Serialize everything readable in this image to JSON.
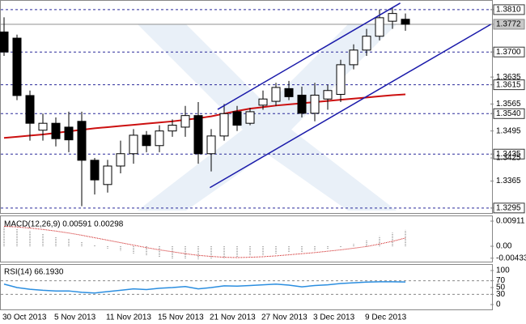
{
  "chart_data": [
    {
      "type": "candlestick",
      "categories": [
        "30 Oct 2013",
        null,
        null,
        null,
        "5 Nov 2013",
        null,
        null,
        null,
        "11 Nov 2013",
        null,
        null,
        null,
        "15 Nov 2013",
        null,
        null,
        null,
        "21 Nov 2013",
        null,
        null,
        null,
        "27 Nov 2013",
        null,
        null,
        null,
        "3 Dec 2013",
        null,
        null,
        null,
        "9 Dec 2013",
        null,
        null,
        null
      ],
      "open": [
        1.3752,
        1.3736,
        1.3587,
        1.3497,
        1.3515,
        1.3505,
        1.352,
        1.3419,
        1.3356,
        1.3404,
        1.3436,
        1.3484,
        1.3457,
        1.3495,
        1.3505,
        1.3535,
        1.3436,
        1.3482,
        1.3545,
        1.3515,
        1.3562,
        1.3572,
        1.3605,
        1.3588,
        1.3541,
        1.3578,
        1.359,
        1.3667,
        1.3705,
        1.3741,
        1.378,
        1.3785
      ],
      "high": [
        1.379,
        1.3745,
        1.36,
        1.354,
        1.353,
        1.3545,
        1.3545,
        1.3425,
        1.342,
        1.347,
        1.35,
        1.3495,
        1.351,
        1.3525,
        1.356,
        1.357,
        1.35,
        1.3565,
        1.356,
        1.3555,
        1.36,
        1.362,
        1.3625,
        1.361,
        1.362,
        1.3615,
        1.368,
        1.372,
        1.376,
        1.381,
        1.3815,
        1.38
      ],
      "low": [
        1.369,
        1.3575,
        1.347,
        1.347,
        1.3455,
        1.344,
        1.33,
        1.333,
        1.3335,
        1.3385,
        1.341,
        1.344,
        1.344,
        1.348,
        1.348,
        1.341,
        1.339,
        1.347,
        1.3495,
        1.351,
        1.355,
        1.356,
        1.3575,
        1.353,
        1.352,
        1.355,
        1.357,
        1.3655,
        1.369,
        1.373,
        1.376,
        1.3755
      ],
      "close": [
        1.37,
        1.3587,
        1.3515,
        1.3515,
        1.3475,
        1.3472,
        1.3419,
        1.3368,
        1.3404,
        1.3436,
        1.3484,
        1.3457,
        1.3495,
        1.351,
        1.3535,
        1.3436,
        1.3482,
        1.354,
        1.351,
        1.3545,
        1.3578,
        1.3608,
        1.3584,
        1.3541,
        1.3588,
        1.36,
        1.3667,
        1.3705,
        1.3741,
        1.3789,
        1.38,
        1.3772
      ],
      "up_color": "#ffffff",
      "down_color": "#000000",
      "moving_average": [
        1.3477,
        1.348,
        1.3483,
        1.3486,
        1.349,
        1.3494,
        1.3498,
        1.3502,
        1.3505,
        1.3508,
        1.3511,
        1.3514,
        1.3517,
        1.352,
        1.3524,
        1.3528,
        1.3533,
        1.354,
        1.3547,
        1.3553,
        1.3557,
        1.3561,
        1.3564,
        1.3567,
        1.357,
        1.3573,
        1.3576,
        1.3579,
        1.3582,
        1.3585,
        1.3588,
        1.359
      ],
      "ma_color": "#cc1010",
      "trendlines": [
        {
          "x": [
            16.5,
            30.6
          ],
          "y": [
            1.3551,
            1.3827
          ]
        },
        {
          "x": [
            15.9,
            37.6
          ],
          "y": [
            1.3348,
            1.3772
          ]
        }
      ],
      "trendline_color": "#1a1aaa",
      "levels": [
        1.381,
        1.37,
        1.3615,
        1.354,
        1.3435,
        1.3295
      ],
      "level_color": "#2a2a9a",
      "ylim": [
        1.3282,
        1.3835
      ],
      "yticks": [
        {
          "value": 1.381,
          "label": "1.3810"
        },
        1.3772,
        {
          "value": 1.37,
          "label": "1.3700"
        },
        1.3635,
        1.3615,
        1.3565,
        {
          "value": 1.354,
          "label": "1.3540"
        },
        1.3495,
        1.3435,
        1.3425,
        1.3365,
        1.3295
      ]
    },
    {
      "type": "macd",
      "title": "MACD(12,26,9) 0.00591 0.00298",
      "series": [
        {
          "color": "#b4b4b4",
          "values": [
            0.007,
            0.0064,
            0.0055,
            0.0045,
            0.0035,
            0.0028,
            0.0016,
            0.0004,
            -0.0008,
            -0.0018,
            -0.0026,
            -0.0034,
            -0.004,
            -0.0044,
            -0.0045,
            -0.0048,
            -0.0045,
            -0.0043,
            -0.004,
            -0.0036,
            -0.0032,
            -0.0027,
            -0.0024,
            -0.0022,
            -0.0018,
            -0.0012,
            -0.0003,
            0.0008,
            0.0022,
            0.0036,
            0.0049,
            0.00591
          ]
        },
        {
          "color": "#cc1010",
          "values": [
            0.0072,
            0.007,
            0.0066,
            0.0061,
            0.0055,
            0.0048,
            0.004,
            0.0031,
            0.0022,
            0.0013,
            0.0004,
            -0.0005,
            -0.0013,
            -0.002,
            -0.0027,
            -0.0033,
            -0.0037,
            -0.004,
            -0.0041,
            -0.004,
            -0.0038,
            -0.0035,
            -0.0031,
            -0.0027,
            -0.0023,
            -0.0018,
            -0.0013,
            -0.0007,
            -0.0001,
            0.0008,
            0.0018,
            0.00298
          ]
        }
      ],
      "ylim": [
        -0.00558,
        0.01117
      ],
      "yticks": [
        0.00911,
        {
          "value": 0,
          "label": "0.00"
        },
        -0.00433
      ]
    },
    {
      "type": "rsi",
      "title": "RSI(14) 66.1930",
      "color": "#2b8ee0",
      "values": [
        60,
        50,
        45,
        42,
        40,
        40,
        36,
        34,
        38,
        42,
        46,
        44,
        48,
        50,
        53,
        46,
        50,
        55,
        54,
        56,
        58,
        60,
        57,
        52,
        56,
        58,
        62,
        64,
        66,
        67,
        67,
        66.193
      ],
      "levels": [
        70,
        30
      ],
      "ylim": [
        -14.3,
        119
      ],
      "yticks": [
        100,
        70,
        50,
        30,
        0
      ]
    }
  ]
}
